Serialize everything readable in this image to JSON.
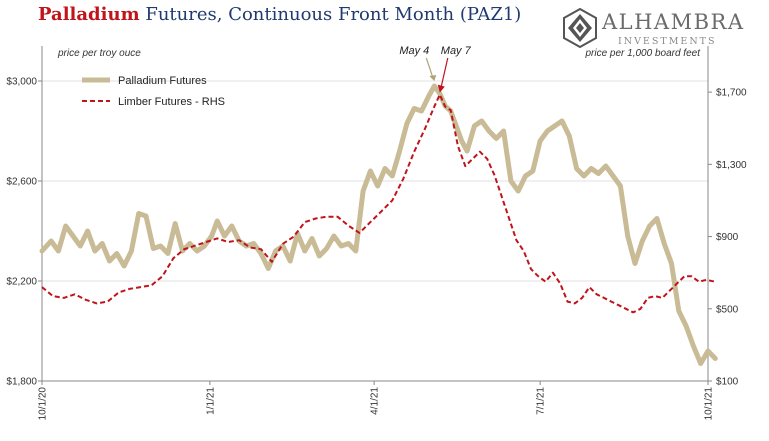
{
  "title_part1": "Palladium",
  "title_part2": " Futures, Continuous Front Month (PAZ1)",
  "logo": {
    "brand": "ALHAMBRA",
    "sub": "INVESTMENTS",
    "icon": "hexagon-diamond-logo-icon"
  },
  "colors": {
    "palladium": "#c8bb95",
    "lumber": "#c0141b",
    "title_red": "#c0141b",
    "title_blue": "#1f3a6e"
  },
  "chart_data": {
    "type": "line",
    "left_axis_note": "price per troy ouce",
    "right_axis_note": "price per 1,000 board feet",
    "ylim_left": [
      1800,
      3100
    ],
    "ylim_right": [
      100,
      1900
    ],
    "yticks_left": [
      "$1,800",
      "$2,200",
      "$2,600",
      "$3,000"
    ],
    "yticks_left_values": [
      1800,
      2200,
      2600,
      3000
    ],
    "yticks_right": [
      "$100",
      "$500",
      "$900",
      "$1,300",
      "$1,700"
    ],
    "yticks_right_values": [
      100,
      500,
      900,
      1300,
      1700
    ],
    "x_dates": [
      "2020-10-01",
      "2021-01-01",
      "2021-04-01",
      "2021-07-01",
      "2021-10-01"
    ],
    "xtick_labels": [
      "10/1/20",
      "1/1/21",
      "4/1/21",
      "7/1/21",
      "10/1/21"
    ],
    "legend": [
      "Palladium Futures",
      "Limber Futures - RHS"
    ],
    "annotations": [
      "May 4",
      "May 7"
    ],
    "annotation_dates": [
      "2021-05-04",
      "2021-05-07"
    ],
    "series": [
      {
        "name": "Palladium Futures",
        "axis": "left",
        "points": [
          [
            "2020-10-01",
            2320
          ],
          [
            "2020-10-06",
            2360
          ],
          [
            "2020-10-10",
            2320
          ],
          [
            "2020-10-14",
            2420
          ],
          [
            "2020-10-18",
            2380
          ],
          [
            "2020-10-22",
            2340
          ],
          [
            "2020-10-26",
            2400
          ],
          [
            "2020-10-30",
            2320
          ],
          [
            "2020-11-03",
            2350
          ],
          [
            "2020-11-07",
            2280
          ],
          [
            "2020-11-11",
            2310
          ],
          [
            "2020-11-15",
            2260
          ],
          [
            "2020-11-19",
            2320
          ],
          [
            "2020-11-23",
            2470
          ],
          [
            "2020-11-27",
            2460
          ],
          [
            "2020-12-01",
            2330
          ],
          [
            "2020-12-05",
            2340
          ],
          [
            "2020-12-09",
            2310
          ],
          [
            "2020-12-13",
            2430
          ],
          [
            "2020-12-17",
            2320
          ],
          [
            "2020-12-21",
            2350
          ],
          [
            "2020-12-25",
            2320
          ],
          [
            "2020-12-29",
            2340
          ],
          [
            "2021-01-02",
            2380
          ],
          [
            "2021-01-05",
            2440
          ],
          [
            "2021-01-09",
            2380
          ],
          [
            "2021-01-13",
            2420
          ],
          [
            "2021-01-17",
            2360
          ],
          [
            "2021-01-21",
            2340
          ],
          [
            "2021-01-25",
            2350
          ],
          [
            "2021-01-29",
            2310
          ],
          [
            "2021-02-02",
            2250
          ],
          [
            "2021-02-06",
            2320
          ],
          [
            "2021-02-10",
            2340
          ],
          [
            "2021-02-14",
            2280
          ],
          [
            "2021-02-18",
            2390
          ],
          [
            "2021-02-22",
            2320
          ],
          [
            "2021-02-26",
            2370
          ],
          [
            "2021-03-02",
            2300
          ],
          [
            "2021-03-06",
            2330
          ],
          [
            "2021-03-10",
            2380
          ],
          [
            "2021-03-14",
            2340
          ],
          [
            "2021-03-18",
            2350
          ],
          [
            "2021-03-22",
            2320
          ],
          [
            "2021-03-26",
            2560
          ],
          [
            "2021-03-30",
            2640
          ],
          [
            "2021-04-03",
            2580
          ],
          [
            "2021-04-07",
            2650
          ],
          [
            "2021-04-11",
            2620
          ],
          [
            "2021-04-15",
            2720
          ],
          [
            "2021-04-19",
            2830
          ],
          [
            "2021-04-23",
            2890
          ],
          [
            "2021-04-27",
            2880
          ],
          [
            "2021-05-01",
            2940
          ],
          [
            "2021-05-04",
            2980
          ],
          [
            "2021-05-07",
            2950
          ],
          [
            "2021-05-10",
            2900
          ],
          [
            "2021-05-13",
            2880
          ],
          [
            "2021-05-16",
            2820
          ],
          [
            "2021-05-19",
            2760
          ],
          [
            "2021-05-22",
            2720
          ],
          [
            "2021-05-26",
            2820
          ],
          [
            "2021-05-30",
            2840
          ],
          [
            "2021-06-03",
            2800
          ],
          [
            "2021-06-07",
            2770
          ],
          [
            "2021-06-11",
            2800
          ],
          [
            "2021-06-15",
            2600
          ],
          [
            "2021-06-19",
            2560
          ],
          [
            "2021-06-23",
            2620
          ],
          [
            "2021-06-27",
            2640
          ],
          [
            "2021-07-01",
            2760
          ],
          [
            "2021-07-05",
            2800
          ],
          [
            "2021-07-09",
            2820
          ],
          [
            "2021-07-13",
            2840
          ],
          [
            "2021-07-17",
            2780
          ],
          [
            "2021-07-21",
            2650
          ],
          [
            "2021-07-25",
            2620
          ],
          [
            "2021-07-29",
            2650
          ],
          [
            "2021-08-02",
            2630
          ],
          [
            "2021-08-06",
            2660
          ],
          [
            "2021-08-10",
            2620
          ],
          [
            "2021-08-14",
            2580
          ],
          [
            "2021-08-18",
            2380
          ],
          [
            "2021-08-22",
            2270
          ],
          [
            "2021-08-26",
            2360
          ],
          [
            "2021-08-30",
            2420
          ],
          [
            "2021-09-03",
            2450
          ],
          [
            "2021-09-07",
            2350
          ],
          [
            "2021-09-11",
            2270
          ],
          [
            "2021-09-15",
            2080
          ],
          [
            "2021-09-19",
            2020
          ],
          [
            "2021-09-23",
            1940
          ],
          [
            "2021-09-27",
            1870
          ],
          [
            "2021-10-01",
            1920
          ],
          [
            "2021-10-05",
            1890
          ]
        ]
      },
      {
        "name": "Limber Futures - RHS",
        "axis": "right",
        "points": [
          [
            "2020-10-01",
            620
          ],
          [
            "2020-10-07",
            570
          ],
          [
            "2020-10-13",
            560
          ],
          [
            "2020-10-19",
            580
          ],
          [
            "2020-10-25",
            550
          ],
          [
            "2020-10-31",
            530
          ],
          [
            "2020-11-06",
            540
          ],
          [
            "2020-11-12",
            590
          ],
          [
            "2020-11-18",
            610
          ],
          [
            "2020-11-24",
            620
          ],
          [
            "2020-11-30",
            630
          ],
          [
            "2020-12-06",
            680
          ],
          [
            "2020-12-12",
            780
          ],
          [
            "2020-12-18",
            830
          ],
          [
            "2020-12-24",
            850
          ],
          [
            "2020-12-30",
            870
          ],
          [
            "2021-01-05",
            890
          ],
          [
            "2021-01-11",
            870
          ],
          [
            "2021-01-17",
            880
          ],
          [
            "2021-01-23",
            840
          ],
          [
            "2021-01-29",
            830
          ],
          [
            "2021-02-04",
            760
          ],
          [
            "2021-02-10",
            860
          ],
          [
            "2021-02-16",
            900
          ],
          [
            "2021-02-22",
            980
          ],
          [
            "2021-02-28",
            1000
          ],
          [
            "2021-03-06",
            1010
          ],
          [
            "2021-03-12",
            1010
          ],
          [
            "2021-03-18",
            960
          ],
          [
            "2021-03-24",
            920
          ],
          [
            "2021-03-30",
            980
          ],
          [
            "2021-04-05",
            1040
          ],
          [
            "2021-04-11",
            1100
          ],
          [
            "2021-04-17",
            1220
          ],
          [
            "2021-04-23",
            1370
          ],
          [
            "2021-04-29",
            1500
          ],
          [
            "2021-05-04",
            1620
          ],
          [
            "2021-05-07",
            1686
          ],
          [
            "2021-05-10",
            1620
          ],
          [
            "2021-05-13",
            1600
          ],
          [
            "2021-05-17",
            1400
          ],
          [
            "2021-05-21",
            1290
          ],
          [
            "2021-05-25",
            1330
          ],
          [
            "2021-05-29",
            1370
          ],
          [
            "2021-06-02",
            1330
          ],
          [
            "2021-06-06",
            1240
          ],
          [
            "2021-06-10",
            1120
          ],
          [
            "2021-06-14",
            1000
          ],
          [
            "2021-06-18",
            880
          ],
          [
            "2021-06-22",
            820
          ],
          [
            "2021-06-26",
            720
          ],
          [
            "2021-06-30",
            680
          ],
          [
            "2021-07-04",
            650
          ],
          [
            "2021-07-08",
            700
          ],
          [
            "2021-07-12",
            640
          ],
          [
            "2021-07-16",
            540
          ],
          [
            "2021-07-20",
            530
          ],
          [
            "2021-07-24",
            560
          ],
          [
            "2021-07-28",
            620
          ],
          [
            "2021-08-01",
            580
          ],
          [
            "2021-08-05",
            560
          ],
          [
            "2021-08-09",
            540
          ],
          [
            "2021-08-13",
            520
          ],
          [
            "2021-08-17",
            500
          ],
          [
            "2021-08-21",
            480
          ],
          [
            "2021-08-25",
            500
          ],
          [
            "2021-08-29",
            560
          ],
          [
            "2021-09-02",
            570
          ],
          [
            "2021-09-06",
            560
          ],
          [
            "2021-09-10",
            600
          ],
          [
            "2021-09-14",
            640
          ],
          [
            "2021-09-18",
            680
          ],
          [
            "2021-09-22",
            680
          ],
          [
            "2021-09-26",
            650
          ],
          [
            "2021-09-30",
            660
          ],
          [
            "2021-10-05",
            650
          ]
        ]
      }
    ]
  }
}
